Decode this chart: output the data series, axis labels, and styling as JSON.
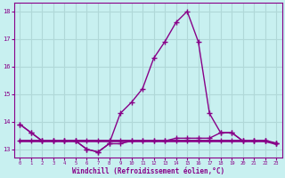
{
  "title": "",
  "xlabel": "Windchill (Refroidissement éolien,°C)",
  "ylabel": "",
  "bg_color": "#c8f0f0",
  "grid_color": "#b0d8d8",
  "line_color": "#880088",
  "x": [
    0,
    1,
    2,
    3,
    4,
    5,
    6,
    7,
    8,
    9,
    10,
    11,
    12,
    13,
    14,
    15,
    16,
    17,
    18,
    19,
    20,
    21,
    22,
    23
  ],
  "y_temp": [
    13.9,
    13.6,
    13.3,
    13.3,
    13.3,
    13.3,
    13.0,
    12.9,
    13.2,
    14.3,
    14.7,
    15.2,
    16.3,
    16.9,
    17.6,
    18.0,
    16.9,
    14.3,
    13.6,
    13.6,
    13.3,
    13.3,
    13.3,
    13.2
  ],
  "y_dew": [
    13.9,
    13.6,
    13.3,
    13.3,
    13.3,
    13.3,
    13.0,
    12.9,
    13.2,
    13.2,
    13.3,
    13.3,
    13.3,
    13.3,
    13.4,
    13.4,
    13.4,
    13.4,
    13.6,
    13.6,
    13.3,
    13.3,
    13.3,
    13.2
  ],
  "y_wind": [
    13.3,
    13.3,
    13.3,
    13.3,
    13.3,
    13.3,
    13.3,
    13.3,
    13.3,
    13.3,
    13.3,
    13.3,
    13.3,
    13.3,
    13.3,
    13.3,
    13.3,
    13.3,
    13.3,
    13.3,
    13.3,
    13.3,
    13.3,
    13.2
  ],
  "ylim": [
    12.7,
    18.3
  ],
  "yticks": [
    13,
    14,
    15,
    16,
    17,
    18
  ],
  "xlim": [
    -0.5,
    23.5
  ],
  "xticks": [
    0,
    1,
    2,
    3,
    4,
    5,
    6,
    7,
    8,
    9,
    10,
    11,
    12,
    13,
    14,
    15,
    16,
    17,
    18,
    19,
    20,
    21,
    22,
    23
  ]
}
